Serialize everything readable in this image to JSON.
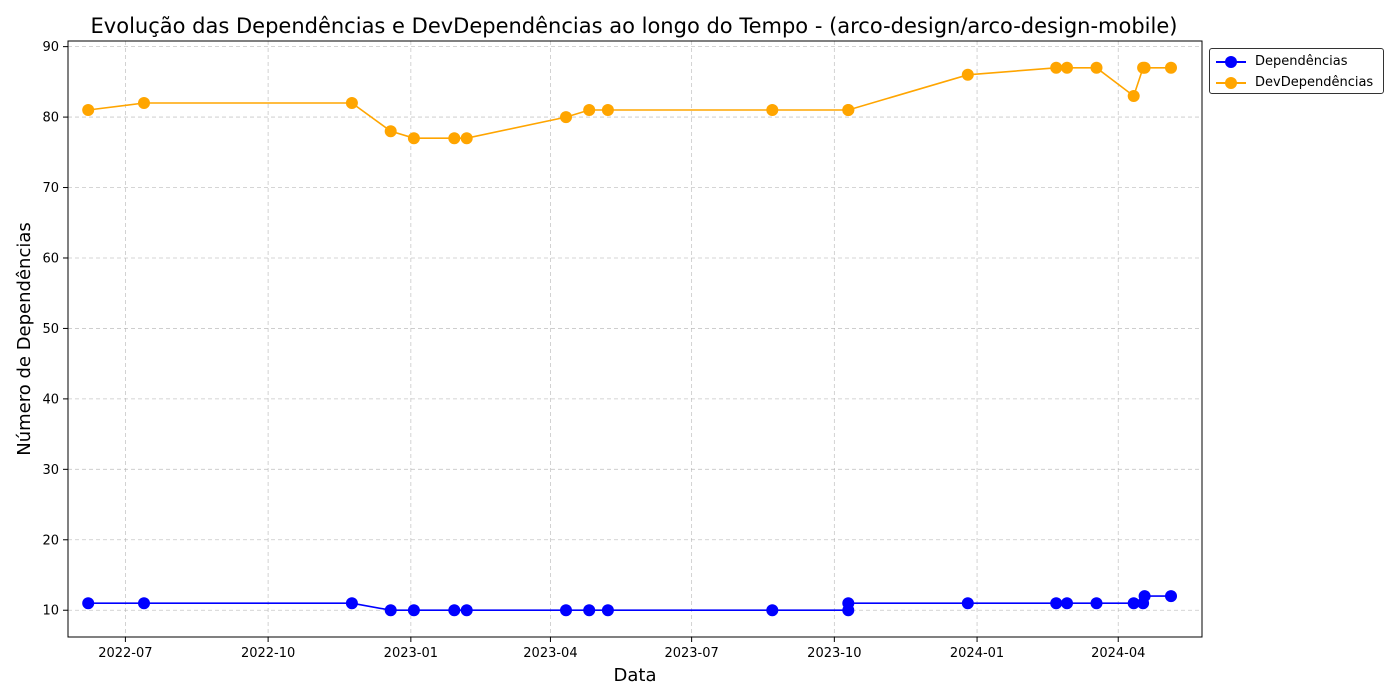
{
  "chart_data": {
    "type": "line",
    "title": "Evolução das Dependências e DevDependências ao longo do Tempo - (arco-design/arco-design-mobile)",
    "xlabel": "Data",
    "ylabel": "Número de Dependências",
    "x_ticks": [
      "2022-07",
      "2022-10",
      "2023-01",
      "2023-04",
      "2023-07",
      "2023-10",
      "2024-01",
      "2024-04"
    ],
    "y_ticks": [
      10,
      20,
      30,
      40,
      50,
      60,
      70,
      80,
      90
    ],
    "xlim": [
      "2022-05-25",
      "2024-05-25"
    ],
    "ylim": [
      6.2,
      90.8
    ],
    "grid": true,
    "legend_position": "upper-right-outside",
    "x": [
      "2022-06-07",
      "2022-07-13",
      "2022-11-24",
      "2022-12-19",
      "2023-01-03",
      "2023-01-29",
      "2023-02-06",
      "2023-04-11",
      "2023-04-26",
      "2023-05-08",
      "2023-08-22",
      "2023-10-10",
      "2023-10-10",
      "2023-12-26",
      "2024-02-21",
      "2024-02-28",
      "2024-03-18",
      "2024-04-11",
      "2024-04-17",
      "2024-04-18",
      "2024-05-05"
    ],
    "series": [
      {
        "name": "Dependências",
        "color": "#0000ff",
        "values": [
          11,
          11,
          11,
          10,
          10,
          10,
          10,
          10,
          10,
          10,
          10,
          10,
          11,
          11,
          11,
          11,
          11,
          11,
          11,
          12,
          12
        ]
      },
      {
        "name": "DevDependências",
        "color": "#ffa500",
        "values": [
          81,
          82,
          82,
          78,
          77,
          77,
          77,
          80,
          81,
          81,
          81,
          81,
          81,
          86,
          87,
          87,
          87,
          83,
          87,
          87,
          87
        ]
      }
    ]
  }
}
